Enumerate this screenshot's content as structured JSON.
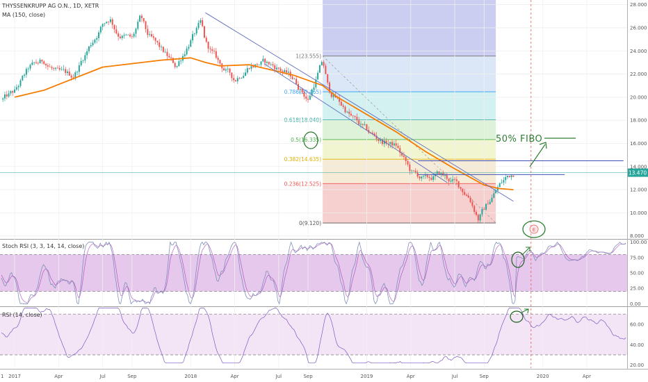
{
  "legend": {
    "title": "THYSSENKRUPP AG O.N., 1D, XETR",
    "ma": "MA (150, close)",
    "stoch": "Stoch RSI (3, 3, 14, 14, close)",
    "rsi": "RSI (14, close)"
  },
  "colors": {
    "candle_up": "#26a69a",
    "candle_down": "#ef5350",
    "ma": "#f57c00",
    "trend": "#5c6bc0",
    "annot": "#2e7d32",
    "stoch_k": "#7e8fb8",
    "stoch_d": "#9c27b0",
    "rsi_line": "#7e57c2",
    "band_purple": "#e1bee7",
    "band_rsi": "#f3e5f5"
  },
  "annotations": {
    "fibo_text": "50% FIBO",
    "current_price": "13.470"
  },
  "chart_data": [
    {
      "type": "candlestick",
      "x_tick_labels": [
        "2017",
        "Apr",
        "Jul",
        "Sep",
        "2018",
        "Apr",
        "Jul",
        "Sep",
        "2019",
        "Apr",
        "Jul",
        "Sep",
        "2020",
        "Apr"
      ],
      "x_ticks_month": [
        0,
        3,
        6,
        8,
        12,
        15,
        18,
        20,
        24,
        27,
        30,
        32,
        36,
        39
      ],
      "y_tick_labels": [
        "8.000",
        "10.000",
        "12.000",
        "14.000",
        "16.000",
        "18.000",
        "20.000",
        "22.000",
        "24.000",
        "26.000",
        "28.000"
      ],
      "ylim": [
        7.8,
        28.4
      ],
      "price_path": [
        [
          -0.8,
          19.8
        ],
        [
          0,
          20.4
        ],
        [
          1,
          22.5
        ],
        [
          2,
          23.1
        ],
        [
          3,
          22.0
        ],
        [
          4,
          21.8
        ],
        [
          5,
          24.2
        ],
        [
          6,
          26.3
        ],
        [
          6.5,
          26.9
        ],
        [
          7,
          25.6
        ],
        [
          8,
          25.0
        ],
        [
          8.6,
          26.8
        ],
        [
          9,
          25.4
        ],
        [
          10,
          24.0
        ],
        [
          11,
          22.6
        ],
        [
          12,
          25.0
        ],
        [
          12.7,
          26.3
        ],
        [
          13,
          24.6
        ],
        [
          14,
          22.8
        ],
        [
          15,
          21.5
        ],
        [
          16,
          22.8
        ],
        [
          17,
          23.0
        ],
        [
          18,
          22.5
        ],
        [
          19,
          21.6
        ],
        [
          20,
          19.8
        ],
        [
          21,
          23.1
        ],
        [
          21.4,
          20.5
        ],
        [
          22,
          19.8
        ],
        [
          23,
          18.2
        ],
        [
          24,
          17.0
        ],
        [
          25,
          16.2
        ],
        [
          26,
          15.8
        ],
        [
          27,
          13.5
        ],
        [
          28,
          12.8
        ],
        [
          29,
          13.3
        ],
        [
          30,
          12.6
        ],
        [
          31,
          11.4
        ],
        [
          31.6,
          9.6
        ],
        [
          32,
          10.3
        ],
        [
          33,
          12.3
        ],
        [
          33.5,
          13.0
        ],
        [
          34,
          13.47
        ]
      ],
      "ma150": [
        [
          0,
          20.0
        ],
        [
          2,
          20.6
        ],
        [
          4,
          21.6
        ],
        [
          6,
          22.6
        ],
        [
          8,
          22.9
        ],
        [
          10,
          23.2
        ],
        [
          12,
          23.4
        ],
        [
          13,
          23.0
        ],
        [
          14,
          22.7
        ],
        [
          16,
          22.8
        ],
        [
          17,
          22.5
        ],
        [
          19,
          21.9
        ],
        [
          21,
          21.0
        ],
        [
          22,
          20.0
        ],
        [
          24,
          18.5
        ],
        [
          26,
          17.0
        ],
        [
          28,
          15.3
        ],
        [
          30,
          13.8
        ],
        [
          32,
          12.4
        ],
        [
          33,
          12.1
        ],
        [
          34,
          12.0
        ]
      ],
      "fibonacci": {
        "start_month": 21,
        "end_month": 32.8,
        "levels": [
          {
            "ratio": "0",
            "value": 9.12,
            "label": "0(9.120)"
          },
          {
            "ratio": "0.236",
            "value": 12.525,
            "label": "0.236(12.525)"
          },
          {
            "ratio": "0.382",
            "value": 14.635,
            "label": "0.382(14.635)"
          },
          {
            "ratio": "0.5",
            "value": 16.335,
            "label": "0.5(16.335)"
          },
          {
            "ratio": "0.618",
            "value": 18.04,
            "label": "0.618(18.040)"
          },
          {
            "ratio": "0.786",
            "value": 20.465,
            "label": "0.786(20.465)"
          },
          {
            "ratio": "1",
            "value": 23.555,
            "label": "1(23.555)"
          }
        ]
      },
      "trendlines": [
        {
          "from": [
            13,
            27.3
          ],
          "to": [
            34,
            11.0
          ]
        },
        {
          "from": [
            17,
            22.9
          ],
          "to": [
            29.5,
            12.6
          ]
        }
      ],
      "horizontal_lines": [
        {
          "value": 14.5,
          "from_month": 27.5,
          "to_month": 41.5
        },
        {
          "value": 13.3,
          "from_month": 27.5,
          "to_month": 37.5
        }
      ],
      "current_price": 13.47,
      "event_month": 35.2
    },
    {
      "type": "line",
      "name": "Stoch RSI (3, 3, 14, 14, close)",
      "y_tick_labels": [
        "0.00",
        "25.00",
        "50.00",
        "75.00",
        "100.00"
      ],
      "ylim": [
        -3,
        103
      ],
      "band": [
        20,
        80
      ]
    },
    {
      "type": "line",
      "name": "RSI (14, close)",
      "y_tick_labels": [
        "20.00",
        "40.00",
        "60.00"
      ],
      "ylim": [
        17,
        77
      ],
      "band": [
        30,
        70
      ]
    }
  ]
}
